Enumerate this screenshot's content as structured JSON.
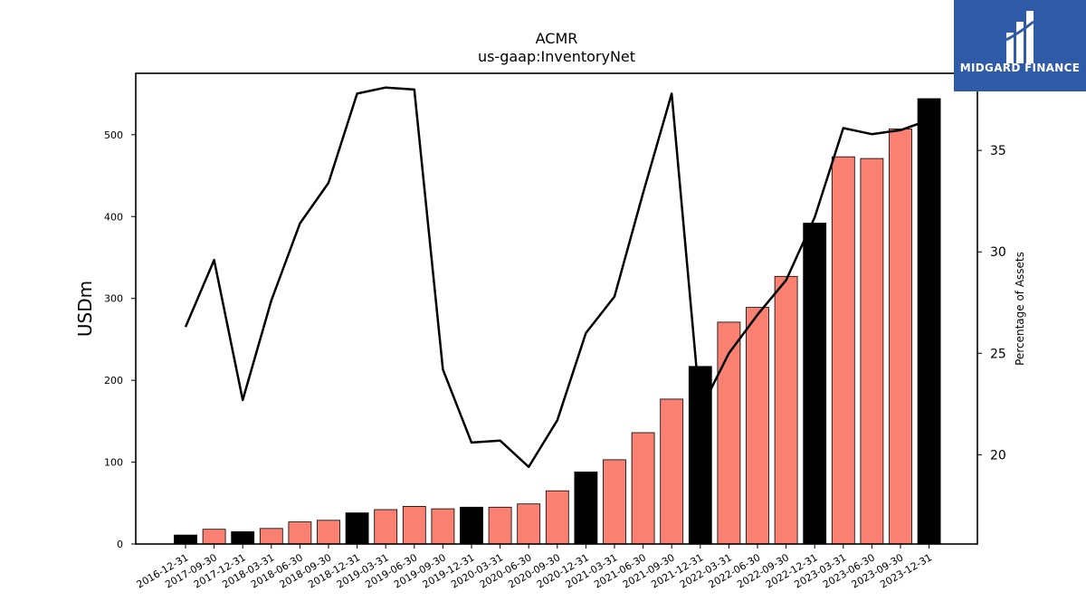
{
  "brand": {
    "name": "MIDGARD FINANCE",
    "bg_color": "#2e5aa8"
  },
  "colors": {
    "bar_normal": "#fa8072",
    "bar_highlight": "#000000",
    "line": "#000000"
  },
  "chart_data": {
    "type": "bar",
    "title": "ACMR",
    "subtitle": "us-gaap:InventoryNet",
    "ylabel": "USDm",
    "y2label": "Percentage of Assets",
    "ylim": [
      0,
      575
    ],
    "y2lim": [
      15.6,
      38.8
    ],
    "yticks": [
      0,
      100,
      200,
      300,
      400,
      500
    ],
    "y2ticks": [
      20,
      25,
      30,
      35
    ],
    "categories": [
      "2016-12-31",
      "2017-09-30",
      "2017-12-31",
      "2018-03-31",
      "2018-06-30",
      "2018-09-30",
      "2018-12-31",
      "2019-03-31",
      "2019-06-30",
      "2019-09-30",
      "2019-12-31",
      "2020-03-31",
      "2020-06-30",
      "2020-09-30",
      "2020-12-31",
      "2021-03-31",
      "2021-06-30",
      "2021-09-30",
      "2021-12-31",
      "2022-03-31",
      "2022-06-30",
      "2022-09-30",
      "2022-12-31",
      "2023-03-31",
      "2023-06-30",
      "2023-09-30",
      "2023-12-31"
    ],
    "series": [
      {
        "kind": "bar",
        "values": [
          11,
          18,
          15,
          19,
          27,
          29,
          38,
          42,
          46,
          43,
          45,
          45,
          49,
          65,
          88,
          103,
          136,
          177,
          217,
          271,
          289,
          327,
          392,
          473,
          471,
          507,
          544
        ],
        "highlight": [
          true,
          false,
          true,
          false,
          false,
          false,
          true,
          false,
          false,
          false,
          true,
          false,
          false,
          false,
          true,
          false,
          false,
          false,
          true,
          false,
          false,
          false,
          true,
          false,
          false,
          false,
          true
        ]
      },
      {
        "kind": "line",
        "axis": "right",
        "values": [
          26.3,
          29.6,
          22.7,
          27.6,
          31.4,
          33.4,
          37.8,
          38.1,
          38.0,
          24.2,
          20.6,
          20.7,
          19.4,
          21.7,
          26.0,
          27.8,
          32.9,
          37.8,
          22.2,
          25.0,
          26.9,
          28.6,
          31.7,
          36.1,
          35.8,
          36.0,
          36.5
        ]
      }
    ],
    "grid": false
  }
}
